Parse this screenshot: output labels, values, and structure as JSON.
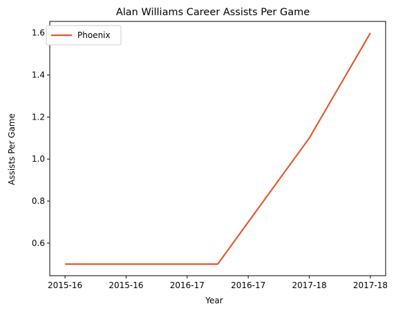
{
  "chart_data": {
    "type": "line",
    "title": "Alan Williams  Career Assists Per Game",
    "xlabel": "Year",
    "ylabel": "Assists Per Game",
    "categories": [
      "2015-16",
      "2015-16",
      "2016-17",
      "2016-17",
      "2017-18",
      "2017-18"
    ],
    "x": [
      0,
      1,
      2,
      2.5,
      4,
      5
    ],
    "series": [
      {
        "name": "Phoenix",
        "color": "#e2582c",
        "values": [
          0.5,
          0.5,
          0.5,
          0.5,
          1.1,
          1.6
        ]
      }
    ],
    "xlim": [
      -0.25,
      5.25
    ],
    "ylim": [
      0.445,
      1.655
    ],
    "yticks": [
      0.6,
      0.8,
      1.0,
      1.2,
      1.4,
      1.6
    ],
    "ytick_labels": [
      "0.6",
      "0.8",
      "1.0",
      "1.2",
      "1.4",
      "1.6"
    ],
    "grid": false,
    "legend_position": "upper-left"
  }
}
